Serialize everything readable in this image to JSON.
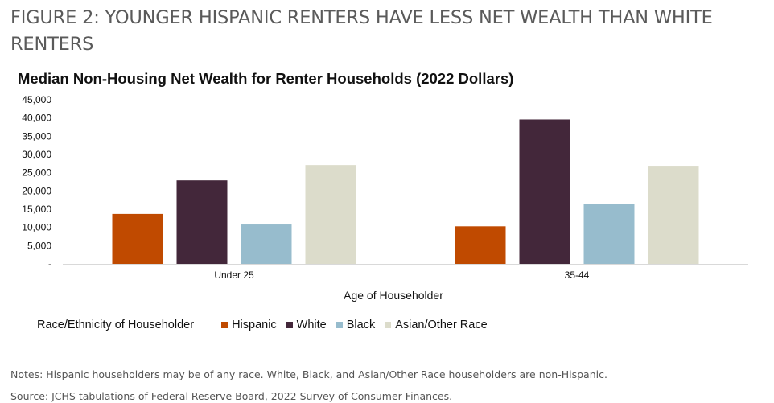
{
  "figure": {
    "title": "FIGURE 2: YOUNGER HISPANIC RENTERS HAVE LESS NET WEALTH THAN WHITE RENTERS"
  },
  "chart_data": {
    "type": "bar",
    "title": "Median Non-Housing Net Wealth for Renter Households (2022 Dollars)",
    "xlabel": "Age of Householder",
    "ylabel": "",
    "categories": [
      "Under 25",
      "35-44"
    ],
    "series": [
      {
        "name": "Hispanic",
        "color": "#c04a00",
        "values": [
          13700,
          10300
        ]
      },
      {
        "name": "White",
        "color": "#43273a",
        "values": [
          22900,
          39600
        ]
      },
      {
        "name": "Black",
        "color": "#97bccd",
        "values": [
          10800,
          16500
        ]
      },
      {
        "name": "Asian/Other Race",
        "color": "#dcdccb",
        "values": [
          27100,
          26900
        ]
      }
    ],
    "ylim": [
      0,
      45000
    ],
    "yticks": [
      "-",
      "5,000",
      "10,000",
      "15,000",
      "20,000",
      "25,000",
      "30,000",
      "35,000",
      "40,000",
      "45,000"
    ],
    "grid": false,
    "legend": {
      "title": "Race/Ethnicity of Householder",
      "position": "bottom"
    }
  },
  "notes": {
    "note": "Notes: Hispanic householders may be of any race. White, Black, and Asian/Other Race householders are non-Hispanic.",
    "source": "Source: JCHS tabulations of Federal Reserve Board, 2022 Survey of Consumer Finances."
  }
}
